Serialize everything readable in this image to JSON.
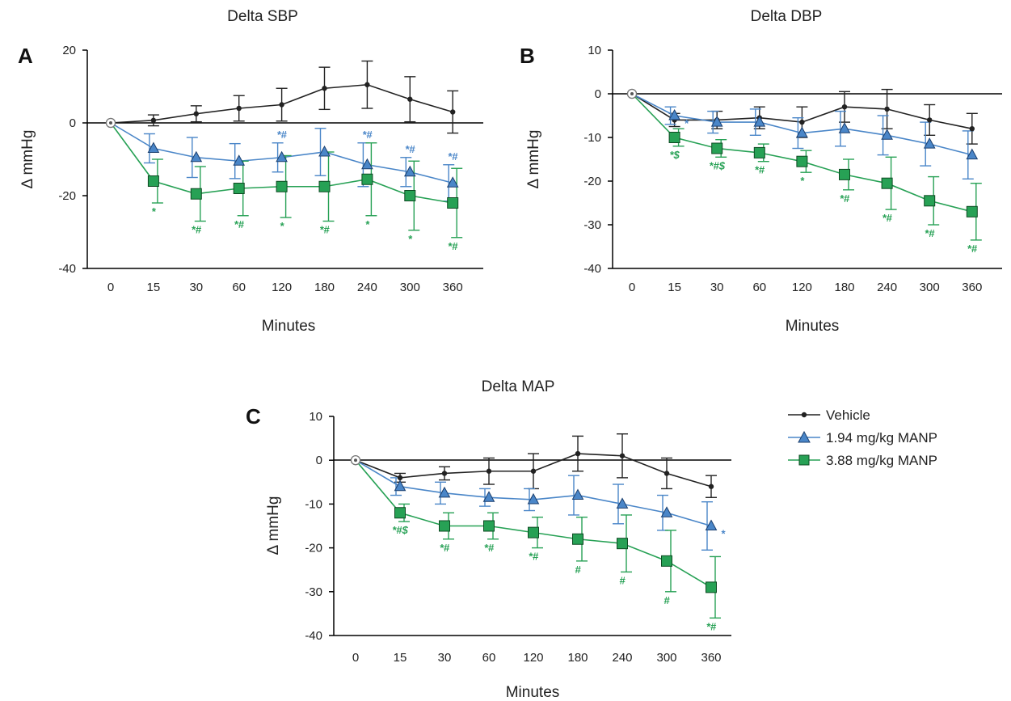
{
  "colors": {
    "vehicle": "#222222",
    "manp194": "#4a86c8",
    "manp388": "#27a155"
  },
  "legend": {
    "placement": "right of panel C",
    "entries": [
      "Vehicle",
      "1.94 mg/kg MANP",
      "3.88 mg/kg MANP"
    ]
  },
  "chart_data": [
    {
      "panel": "A",
      "type": "line",
      "title": "Delta SBP",
      "xlabel": "Minutes",
      "ylabel": "Δ mmHg",
      "categories": [
        "0",
        "15",
        "30",
        "60",
        "120",
        "180",
        "240",
        "300",
        "360"
      ],
      "ylim": [
        -40,
        20
      ],
      "yticks": [
        20,
        0,
        -20,
        -40
      ],
      "yticklabels": [
        "20",
        "0",
        "-20",
        "-40"
      ],
      "series": [
        {
          "name": "Vehicle",
          "values": [
            0,
            0.7,
            2.5,
            4.0,
            5.0,
            9.5,
            10.5,
            6.5,
            3.0
          ],
          "err": [
            0,
            1.5,
            2.2,
            3.5,
            4.5,
            5.8,
            6.5,
            6.2,
            5.8
          ]
        },
        {
          "name": "1.94 mg/kg MANP",
          "values": [
            0,
            -7.0,
            -9.5,
            -10.5,
            -9.5,
            -8.0,
            -11.5,
            -13.5,
            -16.5
          ],
          "err": [
            0,
            4.0,
            5.5,
            4.8,
            4.0,
            6.5,
            6.0,
            4.0,
            5.0
          ]
        },
        {
          "name": "3.88 mg/kg MANP",
          "values": [
            0,
            -16.0,
            -19.5,
            -18.0,
            -17.5,
            -17.5,
            -15.5,
            -20.0,
            -22.0
          ],
          "err": [
            0,
            6.0,
            7.5,
            7.5,
            8.5,
            9.5,
            10.0,
            9.5,
            9.5
          ]
        }
      ],
      "annotations": [
        {
          "series": "1.94 mg/kg MANP",
          "x": "120",
          "position": "above",
          "text": "*#"
        },
        {
          "series": "1.94 mg/kg MANP",
          "x": "240",
          "position": "above",
          "text": "*#"
        },
        {
          "series": "1.94 mg/kg MANP",
          "x": "300",
          "position": "above",
          "text": "*#"
        },
        {
          "series": "1.94 mg/kg MANP",
          "x": "360",
          "position": "above",
          "text": "*#"
        },
        {
          "series": "3.88 mg/kg MANP",
          "x": "15",
          "position": "below",
          "text": "*"
        },
        {
          "series": "3.88 mg/kg MANP",
          "x": "30",
          "position": "below",
          "text": "*#"
        },
        {
          "series": "3.88 mg/kg MANP",
          "x": "60",
          "position": "below",
          "text": "*#"
        },
        {
          "series": "3.88 mg/kg MANP",
          "x": "120",
          "position": "below",
          "text": "*"
        },
        {
          "series": "3.88 mg/kg MANP",
          "x": "180",
          "position": "below",
          "text": "*#"
        },
        {
          "series": "3.88 mg/kg MANP",
          "x": "240",
          "position": "below",
          "text": "*"
        },
        {
          "series": "3.88 mg/kg MANP",
          "x": "300",
          "position": "below",
          "text": "*"
        },
        {
          "series": "3.88 mg/kg MANP",
          "x": "360",
          "position": "below",
          "text": "*#"
        }
      ]
    },
    {
      "panel": "B",
      "type": "line",
      "title": "Delta DBP",
      "xlabel": "Minutes",
      "ylabel": "Δ mmHg",
      "categories": [
        "0",
        "15",
        "30",
        "60",
        "120",
        "180",
        "240",
        "300",
        "360"
      ],
      "ylim": [
        -40,
        10
      ],
      "yticks": [
        10,
        0,
        -10,
        -20,
        -30,
        -40
      ],
      "yticklabels": [
        "10",
        "0",
        "-10",
        "-20",
        "-30",
        "-40"
      ],
      "series": [
        {
          "name": "Vehicle",
          "values": [
            0,
            -6.0,
            -6.0,
            -5.5,
            -6.5,
            -3.0,
            -3.5,
            -6.0,
            -8.0
          ],
          "err": [
            0,
            1.5,
            2.0,
            2.5,
            3.5,
            3.5,
            4.5,
            3.5,
            3.5
          ]
        },
        {
          "name": "1.94 mg/kg MANP",
          "values": [
            0,
            -5.0,
            -6.5,
            -6.5,
            -9.0,
            -8.0,
            -9.5,
            -11.5,
            -14.0
          ],
          "err": [
            0,
            2.0,
            2.5,
            3.0,
            3.5,
            4.0,
            4.5,
            5.0,
            5.5
          ]
        },
        {
          "name": "3.88 mg/kg MANP",
          "values": [
            0,
            -10.0,
            -12.5,
            -13.5,
            -15.5,
            -18.5,
            -20.5,
            -24.5,
            -27.0
          ],
          "err": [
            0,
            2.0,
            2.0,
            2.0,
            2.5,
            3.5,
            6.0,
            5.5,
            6.5
          ]
        }
      ],
      "annotations": [
        {
          "series": "1.94 mg/kg MANP",
          "x": "15",
          "position": "right",
          "text": "*"
        },
        {
          "series": "3.88 mg/kg MANP",
          "x": "15",
          "position": "below",
          "text": "*$"
        },
        {
          "series": "3.88 mg/kg MANP",
          "x": "30",
          "position": "below",
          "text": "*#$"
        },
        {
          "series": "3.88 mg/kg MANP",
          "x": "60",
          "position": "below",
          "text": "*#"
        },
        {
          "series": "3.88 mg/kg MANP",
          "x": "120",
          "position": "below",
          "text": "*"
        },
        {
          "series": "3.88 mg/kg MANP",
          "x": "180",
          "position": "below",
          "text": "*#"
        },
        {
          "series": "3.88 mg/kg MANP",
          "x": "240",
          "position": "below",
          "text": "*#"
        },
        {
          "series": "3.88 mg/kg MANP",
          "x": "300",
          "position": "below",
          "text": "*#"
        },
        {
          "series": "3.88 mg/kg MANP",
          "x": "360",
          "position": "below",
          "text": "*#"
        }
      ]
    },
    {
      "panel": "C",
      "type": "line",
      "title": "Delta MAP",
      "xlabel": "Minutes",
      "ylabel": "Δ mmHg",
      "categories": [
        "0",
        "15",
        "30",
        "60",
        "120",
        "180",
        "240",
        "300",
        "360"
      ],
      "ylim": [
        -40,
        10
      ],
      "yticks": [
        10,
        0,
        -10,
        -20,
        -30,
        -40
      ],
      "yticklabels": [
        "10",
        "0",
        "-10",
        "-20",
        "-30",
        "-40"
      ],
      "series": [
        {
          "name": "Vehicle",
          "values": [
            0,
            -4.0,
            -3.0,
            -2.5,
            -2.5,
            1.5,
            1.0,
            -3.0,
            -6.0
          ],
          "err": [
            0,
            1.0,
            1.5,
            3.0,
            4.0,
            4.0,
            5.0,
            3.5,
            2.5
          ]
        },
        {
          "name": "1.94 mg/kg MANP",
          "values": [
            0,
            -6.0,
            -7.5,
            -8.5,
            -9.0,
            -8.0,
            -10.0,
            -12.0,
            -15.0
          ],
          "err": [
            0,
            2.0,
            2.5,
            2.0,
            2.5,
            4.5,
            4.5,
            4.0,
            5.5
          ]
        },
        {
          "name": "3.88 mg/kg MANP",
          "values": [
            0,
            -12.0,
            -15.0,
            -15.0,
            -16.5,
            -18.0,
            -19.0,
            -23.0,
            -29.0
          ],
          "err": [
            0,
            2.0,
            3.0,
            3.0,
            3.5,
            5.0,
            6.5,
            7.0,
            7.0
          ]
        }
      ],
      "annotations": [
        {
          "series": "1.94 mg/kg MANP",
          "x": "360",
          "position": "right",
          "text": "*"
        },
        {
          "series": "3.88 mg/kg MANP",
          "x": "15",
          "position": "below",
          "text": "*#$"
        },
        {
          "series": "3.88 mg/kg MANP",
          "x": "30",
          "position": "below",
          "text": "*#"
        },
        {
          "series": "3.88 mg/kg MANP",
          "x": "60",
          "position": "below",
          "text": "*#"
        },
        {
          "series": "3.88 mg/kg MANP",
          "x": "120",
          "position": "below",
          "text": "*#"
        },
        {
          "series": "3.88 mg/kg MANP",
          "x": "180",
          "position": "below",
          "text": "#"
        },
        {
          "series": "3.88 mg/kg MANP",
          "x": "240",
          "position": "below",
          "text": "#"
        },
        {
          "series": "3.88 mg/kg MANP",
          "x": "300",
          "position": "below",
          "text": "#"
        },
        {
          "series": "3.88 mg/kg MANP",
          "x": "360",
          "position": "below",
          "text": "*#"
        }
      ]
    }
  ]
}
